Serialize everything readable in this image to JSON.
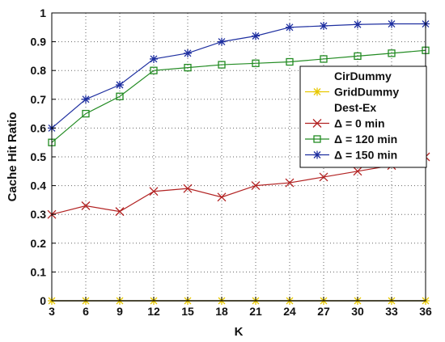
{
  "chart_data": {
    "type": "line",
    "xlabel": "K",
    "ylabel": "Cache  Hit  Ratio",
    "xlim": [
      3,
      36
    ],
    "ylim": [
      0,
      1
    ],
    "x": [
      3,
      6,
      9,
      12,
      15,
      18,
      21,
      24,
      27,
      30,
      33,
      36
    ],
    "x_ticks": [
      "3",
      "6",
      "9",
      "12",
      "15",
      "18",
      "21",
      "24",
      "27",
      "30",
      "33",
      "36"
    ],
    "y_ticks": [
      "0",
      "0.1",
      "0.2",
      "0.3",
      "0.4",
      "0.5",
      "0.6",
      "0.7",
      "0.8",
      "0.9",
      "1"
    ],
    "y_tick_values": [
      0,
      0.1,
      0.2,
      0.3,
      0.4,
      0.5,
      0.6,
      0.7,
      0.8,
      0.9,
      1
    ],
    "grid": true,
    "legend_placement": "right",
    "series": [
      {
        "name": "CirDummy",
        "color": "#000000",
        "marker": "none",
        "values": [
          0,
          0,
          0,
          0,
          0,
          0,
          0,
          0,
          0,
          0,
          0,
          0
        ]
      },
      {
        "name": "GridDummy",
        "color": "#e8c800",
        "marker": "star",
        "values": [
          0,
          0,
          0,
          0,
          0,
          0,
          0,
          0,
          0,
          0,
          0,
          0
        ]
      },
      {
        "name": "Dest-Ex",
        "color": "#000000",
        "marker": "none",
        "values": [
          0,
          0,
          0,
          0,
          0,
          0,
          0,
          0,
          0,
          0,
          0,
          0
        ]
      },
      {
        "name": "Δ = 0 min",
        "color": "#b22222",
        "marker": "x",
        "values": [
          0.3,
          0.33,
          0.31,
          0.38,
          0.39,
          0.36,
          0.4,
          0.41,
          0.43,
          0.45,
          0.47,
          0.5
        ]
      },
      {
        "name": "Δ = 120 min",
        "color": "#228b22",
        "marker": "square",
        "values": [
          0.55,
          0.65,
          0.71,
          0.8,
          0.81,
          0.82,
          0.825,
          0.83,
          0.84,
          0.85,
          0.86,
          0.87
        ]
      },
      {
        "name": "Δ = 150 min",
        "color": "#1e2fa0",
        "marker": "star",
        "values": [
          0.6,
          0.7,
          0.75,
          0.84,
          0.86,
          0.9,
          0.92,
          0.95,
          0.955,
          0.96,
          0.962,
          0.962
        ]
      }
    ]
  }
}
